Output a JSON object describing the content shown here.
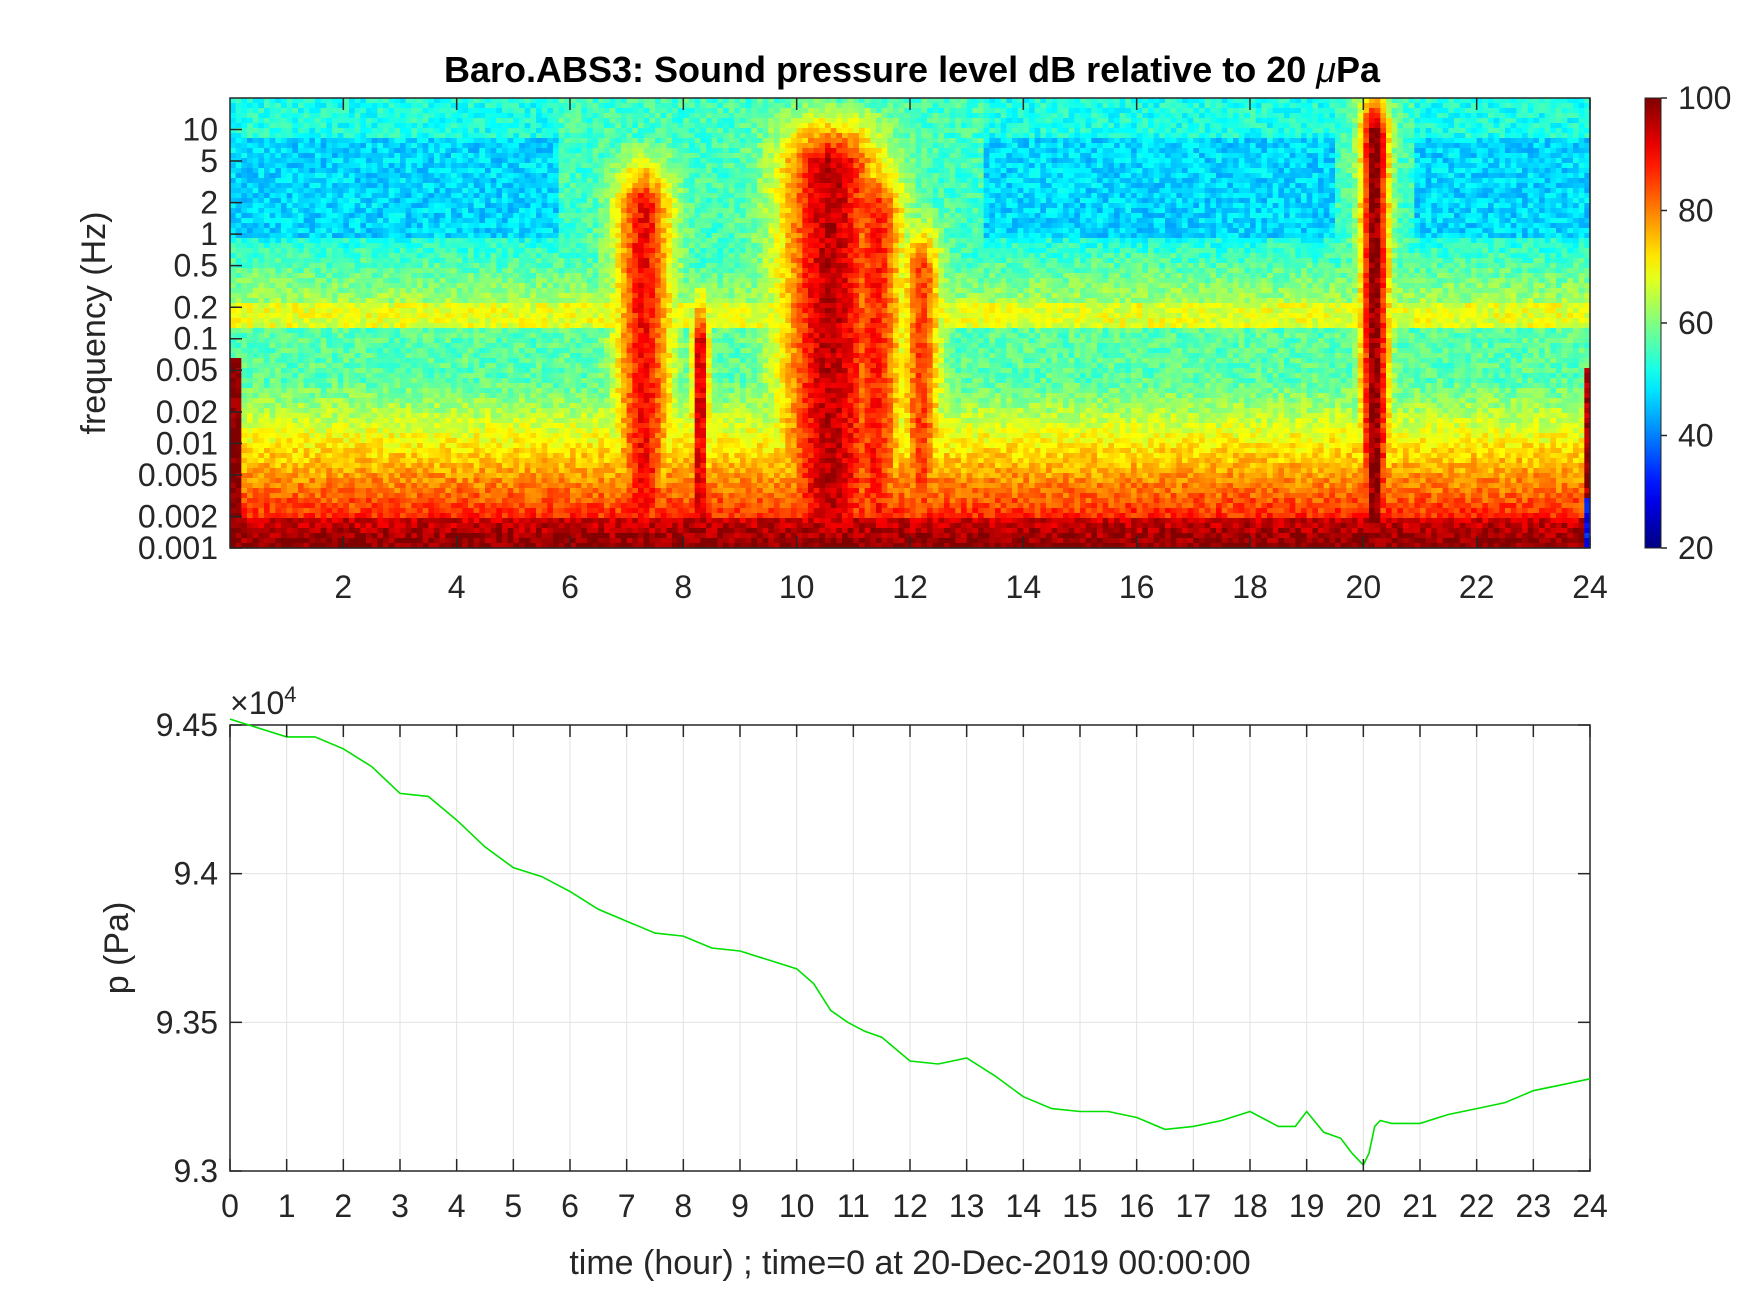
{
  "chart_data": [
    {
      "type": "heatmap",
      "title": "Baro.ABS3: Sound pressure level dB relative to 20 μPa",
      "title_prefix": "Baro.ABS3: Sound pressure level dB relative to 20 ",
      "title_mu": "μ",
      "title_suffix": "Pa",
      "xlabel": "",
      "ylabel": "frequency (Hz)",
      "xlim": [
        0,
        24
      ],
      "ylim": [
        0.001,
        20
      ],
      "yscale": "log",
      "xticks": [
        2,
        4,
        6,
        8,
        10,
        12,
        14,
        16,
        18,
        20,
        22,
        24
      ],
      "yticks": [
        0.001,
        0.002,
        0.005,
        0.01,
        0.02,
        0.05,
        0.1,
        0.2,
        0.5,
        1,
        2,
        5,
        10
      ],
      "ytick_labels": [
        "0.001",
        "0.002",
        "0.005",
        "0.01",
        "0.02",
        "0.05",
        "0.1",
        "0.2",
        "0.5",
        "1",
        "2",
        "5",
        "10"
      ],
      "colorbar": {
        "colormap": "jet",
        "clim": [
          20,
          100
        ],
        "ticks": [
          20,
          40,
          60,
          80,
          100
        ],
        "tick_labels": [
          "20",
          "40",
          "60",
          "80",
          "100"
        ]
      },
      "bursts": [
        {
          "center_hour": 7.3,
          "width_hour": 0.5,
          "top_hz": 2.0,
          "peak_db": 90
        },
        {
          "center_hour": 8.3,
          "width_hour": 0.15,
          "top_hz": 0.1,
          "peak_db": 95
        },
        {
          "center_hour": 10.6,
          "width_hour": 0.9,
          "top_hz": 5.0,
          "peak_db": 95
        },
        {
          "center_hour": 11.4,
          "width_hour": 0.5,
          "top_hz": 2.0,
          "peak_db": 88
        },
        {
          "center_hour": 12.2,
          "width_hour": 0.35,
          "top_hz": 0.5,
          "peak_db": 85
        },
        {
          "center_hour": 20.2,
          "width_hour": 0.25,
          "top_hz": 10.0,
          "peak_db": 100
        }
      ]
    },
    {
      "type": "line",
      "title": "",
      "xlabel": "time (hour) ; time=0 at 20-Dec-2019 00:00:00",
      "ylabel": "p (Pa)",
      "xlim": [
        0,
        24
      ],
      "ylim": [
        93000,
        94500
      ],
      "grid": true,
      "y_exponent_label": "×10",
      "y_exponent_power": "4",
      "xticks": [
        0,
        1,
        2,
        3,
        4,
        5,
        6,
        7,
        8,
        9,
        10,
        11,
        12,
        13,
        14,
        15,
        16,
        17,
        18,
        19,
        20,
        21,
        22,
        23,
        24
      ],
      "yticks": [
        93000,
        93500,
        94000,
        94500
      ],
      "ytick_labels": [
        "9.3",
        "9.35",
        "9.4",
        "9.45"
      ],
      "line_color": "#00e000",
      "series": [
        {
          "x": [
            0,
            0.5,
            1,
            1.5,
            2,
            2.5,
            3,
            3.5,
            4,
            4.5,
            5,
            5.5,
            6,
            6.5,
            7,
            7.5,
            8,
            8.5,
            9,
            9.5,
            10,
            10.3,
            10.6,
            10.9,
            11.2,
            11.5,
            12,
            12.5,
            13,
            13.5,
            14,
            14.5,
            15,
            15.5,
            16,
            16.5,
            17,
            17.5,
            18,
            18.5,
            18.8,
            19,
            19.3,
            19.6,
            19.8,
            20,
            20.1,
            20.2,
            20.3,
            20.5,
            21,
            21.5,
            22,
            22.5,
            23,
            23.5,
            24
          ],
          "y": [
            94520,
            94490,
            94460,
            94460,
            94420,
            94360,
            94270,
            94260,
            94180,
            94090,
            94020,
            93990,
            93940,
            93880,
            93840,
            93800,
            93790,
            93750,
            93740,
            93710,
            93680,
            93630,
            93540,
            93500,
            93470,
            93450,
            93370,
            93360,
            93380,
            93320,
            93250,
            93210,
            93200,
            93200,
            93180,
            93140,
            93150,
            93170,
            93200,
            93150,
            93150,
            93200,
            93130,
            93110,
            93060,
            93020,
            93060,
            93150,
            93170,
            93160,
            93160,
            93190,
            93210,
            93230,
            93270,
            93290,
            93310
          ]
        }
      ]
    }
  ]
}
